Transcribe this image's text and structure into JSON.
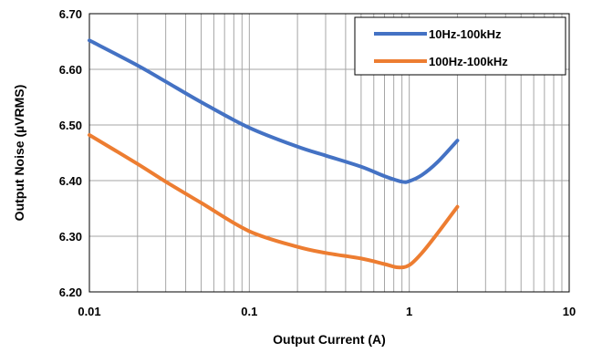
{
  "chart_data": {
    "type": "line",
    "title": "",
    "xlabel": "Output Current (A)",
    "ylabel": "Output Noise (µVRMS)",
    "xscale": "log",
    "xlim": [
      0.01,
      10
    ],
    "ylim": [
      6.2,
      6.7
    ],
    "x_ticks": [
      0.01,
      0.1,
      1,
      10
    ],
    "x_tick_labels": [
      "0.01",
      "0.1",
      "1",
      "10"
    ],
    "y_ticks": [
      6.2,
      6.3,
      6.4,
      6.5,
      6.6,
      6.7
    ],
    "y_tick_labels": [
      "6.20",
      "6.30",
      "6.40",
      "6.50",
      "6.60",
      "6.70"
    ],
    "grid": true,
    "legend_position": "top-right",
    "series": [
      {
        "name": "10Hz-100kHz",
        "color": "#4472C4",
        "x": [
          0.01,
          0.02,
          0.03,
          0.05,
          0.1,
          0.2,
          0.3,
          0.5,
          0.7,
          0.9,
          1.0,
          1.2,
          1.5,
          2.0
        ],
        "y": [
          6.652,
          6.607,
          6.578,
          6.541,
          6.495,
          6.461,
          6.445,
          6.425,
          6.408,
          6.398,
          6.399,
          6.41,
          6.433,
          6.472
        ]
      },
      {
        "name": "100Hz-100kHz",
        "color": "#ED7D31",
        "x": [
          0.01,
          0.02,
          0.03,
          0.05,
          0.1,
          0.2,
          0.3,
          0.5,
          0.7,
          0.85,
          1.0,
          1.2,
          1.5,
          2.0
        ],
        "y": [
          6.482,
          6.43,
          6.398,
          6.36,
          6.309,
          6.281,
          6.27,
          6.26,
          6.25,
          6.244,
          6.248,
          6.27,
          6.305,
          6.353
        ]
      }
    ]
  }
}
